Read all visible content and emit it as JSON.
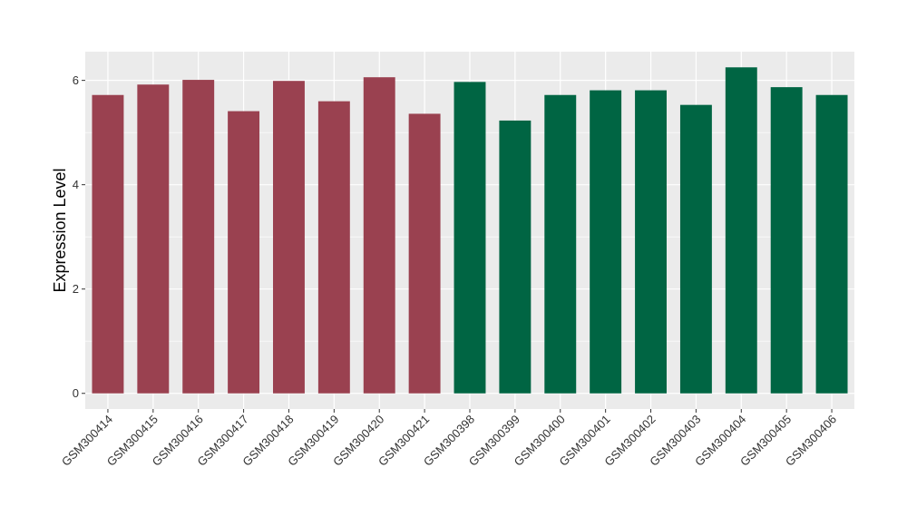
{
  "chart_data": {
    "type": "bar",
    "title": "",
    "xlabel": "",
    "ylabel": "Expression Level",
    "ylim": [
      -0.3,
      6.55
    ],
    "yticks": [
      0,
      2,
      4,
      6
    ],
    "grid": true,
    "legend": "none",
    "categories": [
      "GSM300414",
      "GSM300415",
      "GSM300416",
      "GSM300417",
      "GSM300418",
      "GSM300419",
      "GSM300420",
      "GSM300421",
      "GSM300398",
      "GSM300399",
      "GSM300400",
      "GSM300401",
      "GSM300402",
      "GSM300403",
      "GSM300404",
      "GSM300405",
      "GSM300406"
    ],
    "values": [
      5.72,
      5.92,
      6.01,
      5.41,
      5.99,
      5.6,
      6.06,
      5.36,
      5.97,
      5.23,
      5.72,
      5.81,
      5.81,
      5.53,
      6.25,
      5.87,
      5.72
    ],
    "bar_colors": [
      "#9a4150",
      "#9a4150",
      "#9a4150",
      "#9a4150",
      "#9a4150",
      "#9a4150",
      "#9a4150",
      "#9a4150",
      "#006543",
      "#006543",
      "#006543",
      "#006543",
      "#006543",
      "#006543",
      "#006543",
      "#006543",
      "#006543"
    ],
    "panel_background": "#ebebeb",
    "grid_color": "#ffffff"
  }
}
